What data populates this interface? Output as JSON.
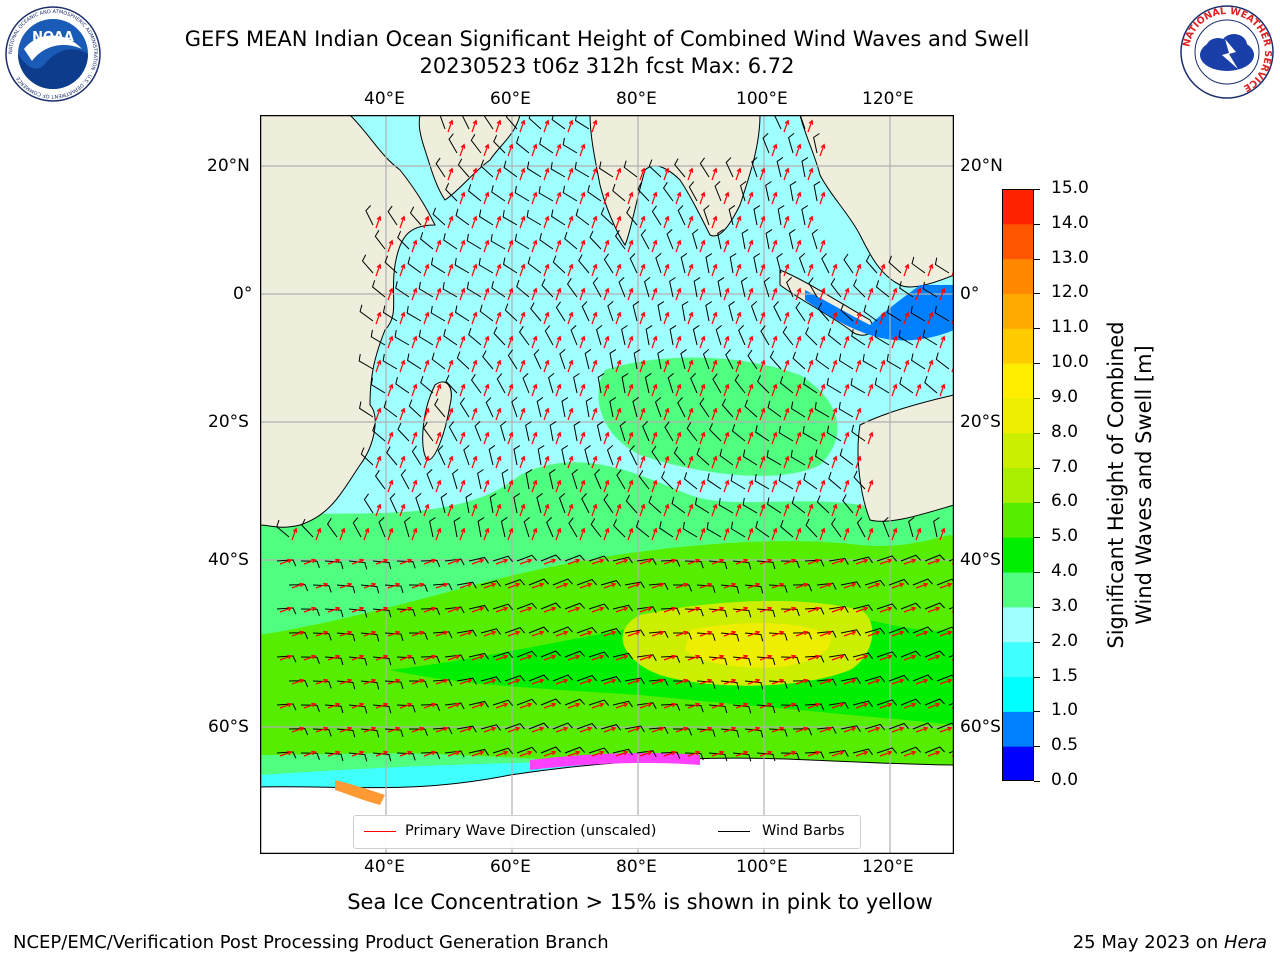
{
  "header": {
    "title_line1": "GEFS MEAN Indian Ocean Significant Height of Combined Wind Waves and Swell",
    "title_line2": "20230523 t06z 312h fcst   Max: 6.72",
    "noaa_logo_text": "NOAA",
    "noaa_ring_text": "NATIONAL OCEANIC AND ATMOSPHERIC ADMINISTRATION · U.S. DEPARTMENT OF COMMERCE",
    "nws_ring_text": "NATIONAL WEATHER SERVICE"
  },
  "map": {
    "lon_ticks": [
      "40°E",
      "60°E",
      "80°E",
      "100°E",
      "120°E"
    ],
    "lat_ticks_left": [
      "20°N",
      "0°",
      "20°S",
      "40°S",
      "60°S"
    ],
    "lat_ticks_right": [
      "20°N",
      "0°",
      "20°S",
      "40°S",
      "60°S"
    ],
    "land_color": "#efeddc",
    "ice_colors": [
      "#ff40ff",
      "#ff9933",
      "#ffff55"
    ],
    "barb_color": "#000000",
    "arrow_color": "#ff0000"
  },
  "legend": {
    "primary_label": "Primary Wave Direction (unscaled)",
    "primary_color": "#ff0000",
    "barbs_label": "Wind Barbs",
    "barbs_color": "#000000"
  },
  "colorbar": {
    "label_line1": "Significant Height of Combined",
    "label_line2": "Wind Waves and Swell [m]",
    "ticks": [
      "15.0",
      "14.0",
      "13.0",
      "12.0",
      "11.0",
      "10.0",
      "9.0",
      "8.0",
      "7.0",
      "6.0",
      "5.0",
      "4.0",
      "3.0",
      "2.0",
      "1.5",
      "1.0",
      "0.5",
      "0.0"
    ],
    "colors": [
      "#0000ff",
      "#0080ff",
      "#00ffff",
      "#40ffff",
      "#a0ffff",
      "#50ff80",
      "#00ee00",
      "#55ee00",
      "#aaee00",
      "#ccee00",
      "#eeee00",
      "#ffee00",
      "#ffcc00",
      "#ffaa00",
      "#ff8800",
      "#ff5500",
      "#ff2200"
    ]
  },
  "subtitle": "Sea Ice Concentration > 15% is shown in pink to yellow",
  "footer": {
    "left": "NCEP/EMC/Verification Post Processing Product Generation Branch",
    "right_date": "25 May 2023 on ",
    "right_host": "Hera"
  }
}
